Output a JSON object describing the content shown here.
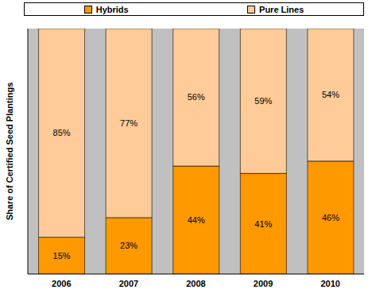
{
  "chart_data": {
    "type": "bar",
    "stacked": true,
    "ylabel": "Share of Certified Seed Plantings",
    "categories": [
      "2006",
      "2007",
      "2008",
      "2009",
      "2010"
    ],
    "series": [
      {
        "name": "Hybrids",
        "color": "#ff9900",
        "values": [
          15,
          23,
          44,
          41,
          46
        ],
        "value_labels": [
          "15%",
          "23%",
          "44%",
          "41%",
          "46%"
        ]
      },
      {
        "name": "Pure Lines",
        "color": "#ffcc99",
        "values": [
          85,
          77,
          56,
          59,
          54
        ],
        "value_labels": [
          "85%",
          "77%",
          "56%",
          "59%",
          "54%"
        ]
      }
    ],
    "ylim": [
      0,
      100
    ],
    "grid": false,
    "legend": "top",
    "data_labels": true,
    "tick_labels": "x"
  }
}
